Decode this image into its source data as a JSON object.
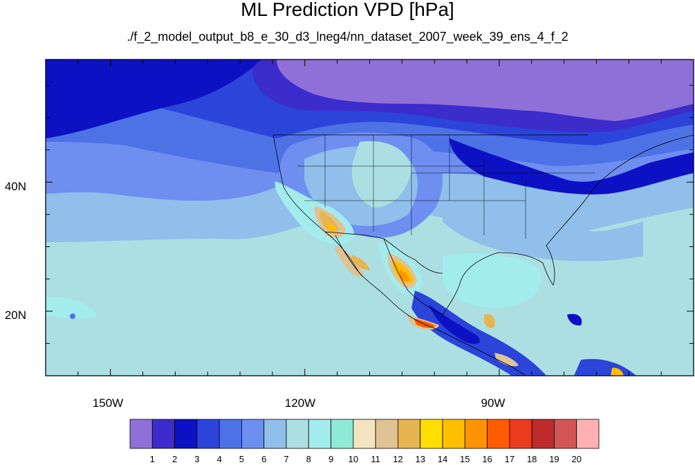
{
  "title": "ML Prediction VPD [hPa]",
  "subtitle": "./f_2_model_output_b8_e_30_d3_lneg4/nn_dataset_2007_week_39_ens_4_f_2",
  "map": {
    "lon_range": [
      -160,
      -60
    ],
    "lat_range": [
      10,
      59
    ],
    "x_ticks": [
      {
        "lon": -150,
        "label": "150W"
      },
      {
        "lon": -120,
        "label": "120W"
      },
      {
        "lon": -90,
        "label": "90W"
      }
    ],
    "y_ticks": [
      {
        "lat": 40,
        "label": "40N"
      },
      {
        "lat": 20,
        "label": "20N"
      }
    ]
  },
  "colorbar": {
    "colors": [
      "#8f70d9",
      "#3c2ccc",
      "#0d11c4",
      "#2b44d9",
      "#4d72e6",
      "#6e8ef0",
      "#8fbfea",
      "#acdfe2",
      "#a3ecee",
      "#90ead8",
      "#f4e3bf",
      "#e0c295",
      "#e6b550",
      "#ffde00",
      "#ffbe00",
      "#ff9400",
      "#ff5c00",
      "#ea3b1d",
      "#bf2a2a",
      "#d45555",
      "#ffb0b0"
    ],
    "labels": [
      "1",
      "2",
      "3",
      "4",
      "5",
      "6",
      "7",
      "8",
      "9",
      "10",
      "11",
      "12",
      "13",
      "14",
      "15",
      "16",
      "17",
      "18",
      "19",
      "20"
    ]
  }
}
